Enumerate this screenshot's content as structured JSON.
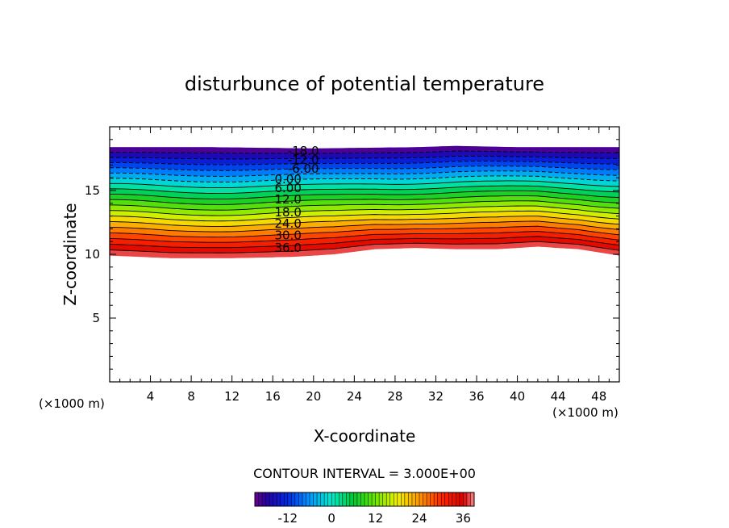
{
  "chart_data": {
    "type": "contour",
    "title": "disturbunce of potential temperature",
    "xlabel": "X-coordinate",
    "ylabel": "Z-coordinate",
    "x_unit": "(×1000 m)",
    "z_unit": "(×1000 m)",
    "xlim": [
      0,
      50
    ],
    "ylim": [
      0,
      20
    ],
    "xticks": [
      4,
      8,
      12,
      16,
      20,
      24,
      28,
      32,
      36,
      40,
      44,
      48
    ],
    "yticks": [
      5,
      10,
      15
    ],
    "contour_interval_text": "CONTOUR INTERVAL = 3.000E+00",
    "contour_interval": 3,
    "value_range": [
      -21,
      39
    ],
    "top_boundary_z": [
      [
        0,
        18.4
      ],
      [
        10,
        18.4
      ],
      [
        20,
        18.3
      ],
      [
        30,
        18.4
      ],
      [
        34,
        18.5
      ],
      [
        40,
        18.4
      ],
      [
        50,
        18.4
      ]
    ],
    "bottom_boundary_z": [
      [
        0,
        9.9
      ],
      [
        6,
        9.7
      ],
      [
        12,
        9.7
      ],
      [
        18,
        9.8
      ],
      [
        22,
        10.0
      ],
      [
        26,
        10.4
      ],
      [
        30,
        10.5
      ],
      [
        34,
        10.4
      ],
      [
        38,
        10.4
      ],
      [
        42,
        10.6
      ],
      [
        46,
        10.4
      ],
      [
        50,
        9.9
      ]
    ],
    "contour_labels": [
      {
        "value": "-18.0",
        "x": 19,
        "z": 18.1
      },
      {
        "value": "-12.0",
        "x": 19,
        "z": 17.4
      },
      {
        "value": "-6.00",
        "x": 19,
        "z": 16.7
      },
      {
        "value": "0.00",
        "x": 17.5,
        "z": 15.9
      },
      {
        "value": "6.00",
        "x": 17.5,
        "z": 15.2
      },
      {
        "value": "12.0",
        "x": 17.5,
        "z": 14.3
      },
      {
        "value": "18.0",
        "x": 17.5,
        "z": 13.3
      },
      {
        "value": "24.0",
        "x": 17.5,
        "z": 12.4
      },
      {
        "value": "30.0",
        "x": 17.5,
        "z": 11.5
      },
      {
        "value": "36.0",
        "x": 17.5,
        "z": 10.5
      }
    ],
    "colorbar": {
      "ticks": [
        -12,
        0,
        12,
        24,
        36
      ],
      "tick_labels": [
        "-12",
        "0",
        "12",
        "24",
        "36"
      ],
      "range": [
        -21,
        39
      ]
    }
  }
}
